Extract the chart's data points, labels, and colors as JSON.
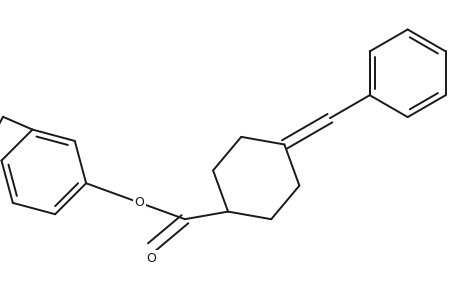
{
  "bg_color": "#ffffff",
  "line_color": "#1a1a1a",
  "line_width": 1.4,
  "figsize": [
    4.6,
    3.0
  ],
  "dpi": 100,
  "xlim": [
    -1.0,
    9.5
  ],
  "ylim": [
    -2.5,
    3.5
  ]
}
